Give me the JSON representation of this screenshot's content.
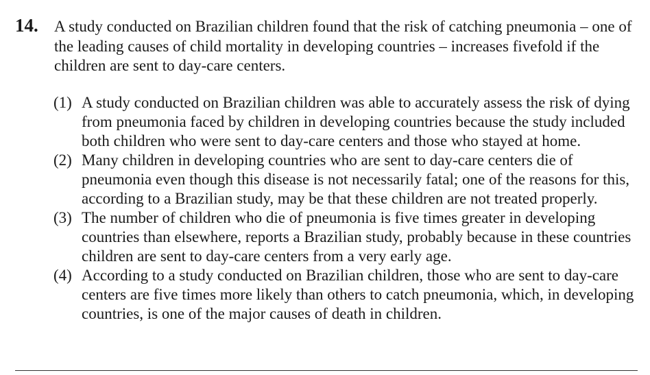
{
  "question": {
    "number": "14.",
    "stem": "A study conducted on Brazilian children found that the risk of catching pneumonia – one of the leading causes of child mortality in developing countries – increases fivefold if the children are sent to day-care centers.",
    "options": [
      {
        "label": "(1)",
        "text": "A study conducted on Brazilian children was able to accurately assess the risk of dying from pneumonia faced by children in developing countries because the study included both children who were sent to day-care centers and those who stayed at home."
      },
      {
        "label": "(2)",
        "text": "Many children in developing countries who are sent to day-care centers die of pneumonia even though this disease is not necessarily fatal; one of the reasons for this, according to a Brazilian study, may be that these children are not treated properly."
      },
      {
        "label": "(3)",
        "text": "The number of children who die of pneumonia is five times greater in developing countries than elsewhere, reports a Brazilian study, probably because in these countries children are sent to day-care centers from a very early age."
      },
      {
        "label": "(4)",
        "text": "According to a study conducted on Brazilian children, those who are sent to day-care centers are five times more likely than others to catch pneumonia, which, in developing countries, is one of the major causes of death in children."
      }
    ]
  }
}
